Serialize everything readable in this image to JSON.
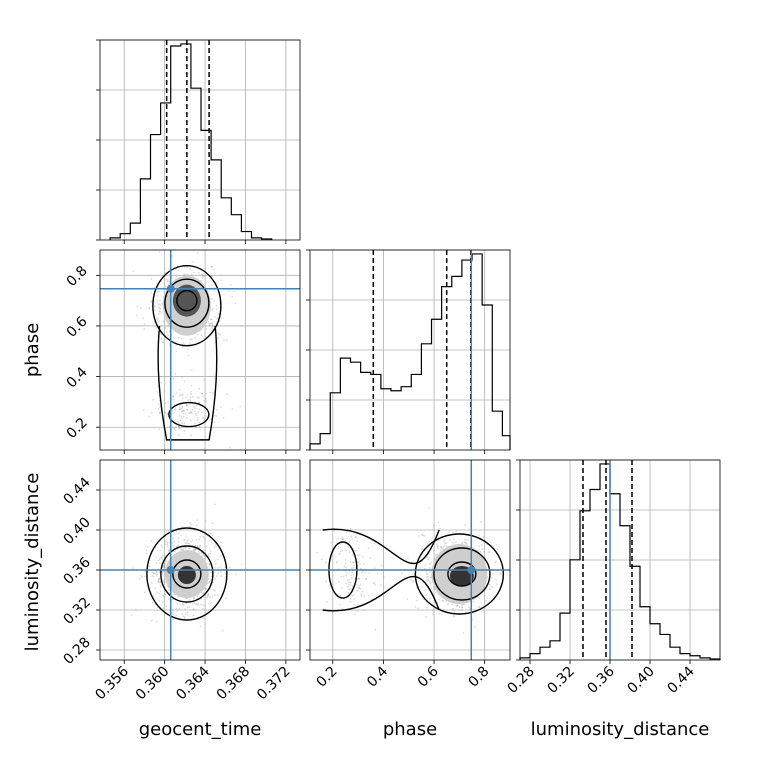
{
  "chart_data": {
    "type": "corner",
    "parameters": [
      "geocent_time",
      "phase",
      "luminosity_distance"
    ],
    "truths": {
      "geocent_time": 0.3606,
      "phase": 0.747,
      "luminosity_distance": 0.36
    },
    "colors": {
      "truth": "#4682b4",
      "hist": "#000000",
      "quantile": "#000000",
      "grid": "#b0b0b0",
      "scatter": "#9a9a9a"
    },
    "grid": true,
    "axes": {
      "geocent_time": {
        "range": [
          0.3536,
          0.3734
        ],
        "ticks": [
          0.356,
          0.36,
          0.364,
          0.368,
          0.372
        ],
        "tick_labels": [
          "0.356",
          "0.360",
          "0.364",
          "0.368",
          "0.372"
        ]
      },
      "phase": {
        "range": [
          0.11,
          0.9
        ],
        "ticks": [
          0.2,
          0.4,
          0.6,
          0.8
        ],
        "tick_labels": [
          "0.2",
          "0.4",
          "0.6",
          "0.8"
        ]
      },
      "luminosity_distance": {
        "range": [
          0.27,
          0.47
        ],
        "ticks": [
          0.28,
          0.32,
          0.36,
          0.4,
          0.44
        ],
        "tick_labels": [
          "0.28",
          "0.32",
          "0.36",
          "0.40",
          "0.44"
        ]
      }
    },
    "histograms": {
      "geocent_time": {
        "edges": [
          0.3546,
          0.3556,
          0.3566,
          0.3576,
          0.3586,
          0.3596,
          0.3606,
          0.3616,
          0.3626,
          0.3636,
          0.3646,
          0.3656,
          0.3666,
          0.3676,
          0.3686,
          0.3696,
          0.3706
        ],
        "values": [
          1,
          3,
          8,
          29,
          50,
          65,
          92,
          93,
          72,
          52,
          38,
          20,
          12,
          4,
          1,
          0.5
        ],
        "quantiles": [
          0.3602,
          0.3622,
          0.3644
        ]
      },
      "phase": {
        "edges": [
          0.11,
          0.15,
          0.19,
          0.23,
          0.27,
          0.31,
          0.35,
          0.39,
          0.43,
          0.47,
          0.51,
          0.55,
          0.59,
          0.63,
          0.67,
          0.71,
          0.75,
          0.79,
          0.83,
          0.87,
          0.9
        ],
        "values": [
          3,
          8,
          28,
          45,
          43,
          38,
          37,
          30,
          29,
          31,
          37,
          52,
          64,
          80,
          85,
          93,
          96,
          71,
          19,
          7
        ],
        "quantiles": [
          0.36,
          0.65,
          0.745
        ]
      },
      "luminosity_distance": {
        "edges": [
          0.27,
          0.28,
          0.29,
          0.3,
          0.31,
          0.32,
          0.33,
          0.34,
          0.35,
          0.36,
          0.37,
          0.38,
          0.39,
          0.4,
          0.41,
          0.42,
          0.43,
          0.44,
          0.45,
          0.46,
          0.47
        ],
        "values": [
          1,
          3,
          6,
          9,
          22,
          47,
          70,
          80,
          92,
          78,
          63,
          44,
          25,
          17,
          12,
          6,
          3,
          2,
          1,
          0.5
        ],
        "quantiles": [
          0.333,
          0.356,
          0.382
        ]
      }
    }
  }
}
